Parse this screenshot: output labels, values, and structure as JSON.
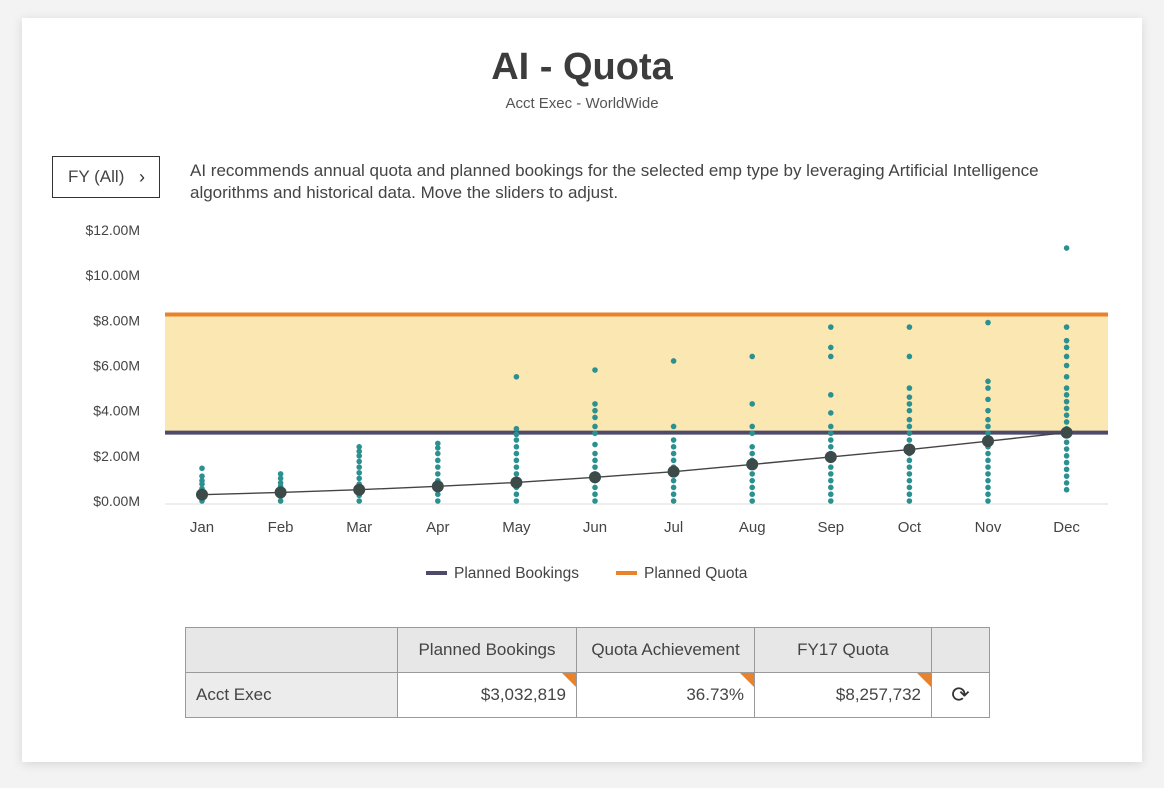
{
  "header": {
    "title": "AI - Quota",
    "subtitle": "Acct Exec - WorldWide"
  },
  "filter": {
    "label": "FY (All)",
    "chevron": "›"
  },
  "description": "AI recommends annual quota and planned bookings for the selected emp type by leveraging Artificial Intelligence algorithms and historical data. Move the sliders to adjust.",
  "colors": {
    "band_fill": "#fbe7b2",
    "planned_quota": "#e8822c",
    "planned_bookings": "#4e4a6a",
    "dots": "#2a9090",
    "curve": "#444444",
    "marker": "#3d4a4a"
  },
  "chart_data": {
    "type": "scatter",
    "categories": [
      "Jan",
      "Feb",
      "Mar",
      "Apr",
      "May",
      "Jun",
      "Jul",
      "Aug",
      "Sep",
      "Oct",
      "Nov",
      "Dec"
    ],
    "ylim": [
      0,
      12
    ],
    "yticks": [
      "$0.00M",
      "$2.00M",
      "$4.00M",
      "$6.00M",
      "$8.00M",
      "$10.00M",
      "$12.00M"
    ],
    "reference_lines": [
      {
        "name": "Planned Bookings",
        "value": 3.03,
        "color": "#4e4a6a"
      },
      {
        "name": "Planned Quota",
        "value": 8.26,
        "color": "#e8822c"
      }
    ],
    "cumulative_curve": [
      0.28,
      0.38,
      0.5,
      0.65,
      0.82,
      1.05,
      1.3,
      1.62,
      1.95,
      2.28,
      2.65,
      3.03
    ],
    "scatter": [
      [
        0.0,
        0.2,
        0.4,
        0.55,
        0.75,
        0.9,
        1.1,
        1.45
      ],
      [
        0.0,
        0.2,
        0.35,
        0.5,
        0.65,
        0.8,
        1.0,
        1.2
      ],
      [
        0.0,
        0.25,
        0.5,
        0.75,
        1.0,
        1.25,
        1.5,
        1.75,
        2.0,
        2.2,
        2.4
      ],
      [
        0.0,
        0.3,
        0.6,
        0.9,
        1.2,
        1.5,
        1.8,
        2.1,
        2.35,
        2.55
      ],
      [
        0.0,
        0.3,
        0.6,
        0.9,
        1.2,
        1.5,
        1.8,
        2.1,
        2.4,
        2.7,
        2.95,
        3.2,
        5.5
      ],
      [
        0.0,
        0.3,
        0.6,
        0.9,
        1.2,
        1.5,
        1.8,
        2.1,
        2.5,
        3.0,
        3.3,
        3.7,
        4.0,
        4.3,
        5.8
      ],
      [
        0.0,
        0.3,
        0.6,
        0.9,
        1.2,
        1.5,
        1.8,
        2.1,
        2.4,
        2.7,
        3.3,
        6.2
      ],
      [
        0.0,
        0.3,
        0.6,
        0.9,
        1.2,
        1.5,
        1.8,
        2.1,
        2.4,
        3.0,
        3.3,
        4.3,
        6.4
      ],
      [
        0.0,
        0.3,
        0.6,
        0.9,
        1.2,
        1.5,
        1.8,
        2.1,
        2.4,
        2.7,
        3.0,
        3.3,
        3.9,
        4.7,
        6.4,
        6.8,
        7.7
      ],
      [
        0.0,
        0.3,
        0.6,
        0.9,
        1.2,
        1.5,
        1.8,
        2.1,
        2.4,
        2.7,
        3.0,
        3.3,
        3.6,
        4.0,
        4.3,
        4.6,
        5.0,
        6.4,
        7.7
      ],
      [
        0.0,
        0.3,
        0.6,
        0.9,
        1.2,
        1.5,
        1.8,
        2.1,
        2.4,
        2.7,
        3.0,
        3.3,
        3.6,
        4.0,
        4.5,
        5.0,
        5.3,
        7.9
      ],
      [
        0.5,
        0.8,
        1.1,
        1.4,
        1.7,
        2.0,
        2.3,
        2.6,
        2.9,
        3.2,
        3.5,
        3.8,
        4.1,
        4.4,
        4.7,
        5.0,
        5.5,
        6.0,
        6.4,
        6.8,
        7.1,
        7.7,
        11.2
      ]
    ],
    "legend": [
      "Planned Bookings",
      "Planned Quota"
    ],
    "legend_position": "bottom-center"
  },
  "table": {
    "headers": [
      "",
      "Planned Bookings",
      "Quota Achievement",
      "FY17 Quota",
      ""
    ],
    "row": {
      "label": "Acct Exec",
      "planned_bookings": "$3,032,819",
      "quota_achievement": "36.73%",
      "fy17_quota": "$8,257,732",
      "refresh_icon": "⟳"
    }
  }
}
